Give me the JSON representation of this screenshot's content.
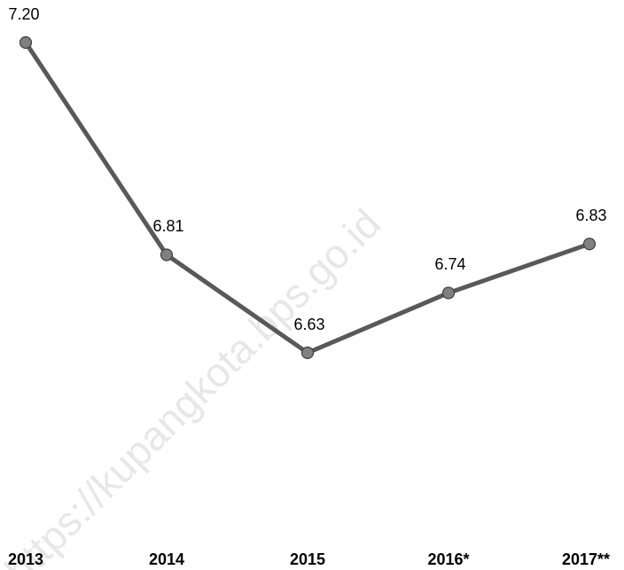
{
  "chart_data": {
    "type": "line",
    "categories": [
      "2013",
      "2014",
      "2015",
      "2016*",
      "2017**"
    ],
    "series": [
      {
        "color": "#595959",
        "values": [
          7.2,
          6.81,
          6.63,
          6.74,
          6.83
        ],
        "value_labels": [
          "7.20",
          "6.81",
          "6.63",
          "6.74",
          "6.83"
        ]
      }
    ],
    "watermark": "https://kupangkota.bps.go.id"
  }
}
